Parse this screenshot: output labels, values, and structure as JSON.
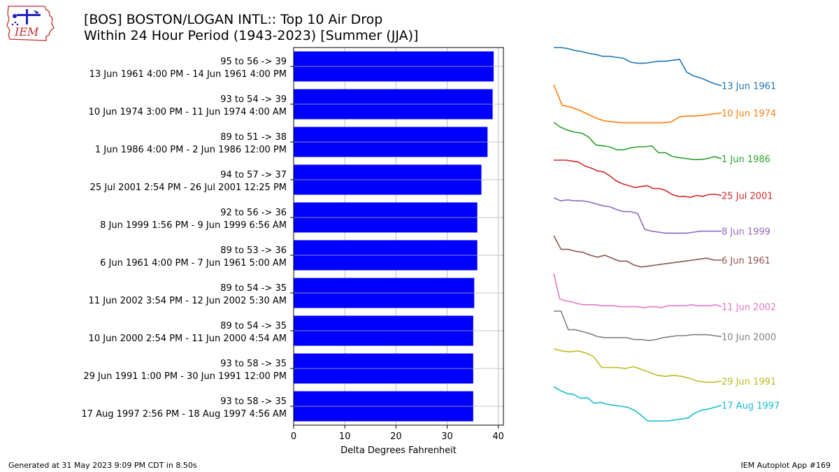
{
  "title_line1": "[BOS] BOSTON/LOGAN INTL:: Top 10 Air Drop",
  "title_line2": "Within 24 Hour Period (1943-2023) [Summer (JJA)]",
  "logo_text": "IEM",
  "footer_left": "Generated at 31 May 2023 9:09 PM CDT in 8.50s",
  "footer_right": "IEM Autoplot App #169",
  "colors": {
    "bar": "#0000ff"
  },
  "chart_data": {
    "type": "bar",
    "orientation": "horizontal",
    "xlabel": "Delta Degrees Fahrenheit",
    "xlim": [
      0,
      41
    ],
    "xticks": [
      0,
      10,
      20,
      30,
      40
    ],
    "grid": true,
    "categories": [
      {
        "line1": "95 to 56 -> 39",
        "line2": "13 Jun 1961 4:00 PM - 14 Jun 1961 4:00 PM"
      },
      {
        "line1": "93 to 54 -> 39",
        "line2": "10 Jun 1974 3:00 PM - 11 Jun 1974 4:00 AM"
      },
      {
        "line1": "89 to 51 -> 38",
        "line2": "1 Jun 1986 4:00 PM - 2 Jun 1986 12:00 PM"
      },
      {
        "line1": "94 to 57 -> 37",
        "line2": "25 Jul 2001 2:54 PM - 26 Jul 2001 12:25 PM"
      },
      {
        "line1": "92 to 56 -> 36",
        "line2": "8 Jun 1999 1:56 PM - 9 Jun 1999 6:56 AM"
      },
      {
        "line1": "89 to 53 -> 36",
        "line2": "6 Jun 1961 4:00 PM - 7 Jun 1961 5:00 AM"
      },
      {
        "line1": "89 to 54 -> 35",
        "line2": "11 Jun 2002 3:54 PM - 12 Jun 2002 5:30 AM"
      },
      {
        "line1": "89 to 54 -> 35",
        "line2": "10 Jun 2000 2:54 PM - 11 Jun 2000 4:54 AM"
      },
      {
        "line1": "93 to 58 -> 35",
        "line2": "29 Jun 1991 1:00 PM - 30 Jun 1991 12:00 PM"
      },
      {
        "line1": "93 to 58 -> 35",
        "line2": "17 Aug 1997 2:56 PM - 18 Aug 1997 4:56 AM"
      }
    ],
    "values": [
      39.1,
      38.9,
      37.9,
      36.7,
      35.9,
      35.9,
      35.3,
      35.1,
      35.1,
      35.1
    ],
    "sparklines": [
      {
        "name": "13 Jun 1961",
        "color": "#1f77b4",
        "values": [
          95,
          95,
          94,
          92,
          91,
          89,
          88,
          86,
          86,
          85,
          84,
          80,
          79,
          79,
          80,
          81,
          81,
          82,
          83,
          70,
          66,
          64,
          61,
          58,
          56
        ]
      },
      {
        "name": "10 Jun 1974",
        "color": "#ff7f0e",
        "values": [
          93,
          72,
          70,
          67,
          63,
          59,
          56,
          55,
          54,
          54,
          54,
          54,
          54,
          54,
          55,
          60,
          61,
          61,
          62,
          63,
          64
        ]
      },
      {
        "name": "1 Jun 1986",
        "color": "#2ca02c",
        "values": [
          89,
          84,
          81,
          79,
          78,
          74,
          66,
          65,
          64,
          61,
          61,
          63,
          64,
          64,
          65,
          58,
          58,
          54,
          53,
          52,
          51,
          51,
          52,
          54,
          52
        ]
      },
      {
        "name": "25 Jul 2001",
        "color": "#d62728",
        "values": [
          94,
          94,
          94,
          93,
          92,
          88,
          86,
          83,
          82,
          78,
          73,
          70,
          68,
          66,
          67,
          68,
          65,
          65,
          63,
          59,
          57,
          57,
          56,
          58,
          57,
          59,
          59,
          58
        ]
      },
      {
        "name": "8 Jun 1999",
        "color": "#9467bd",
        "values": [
          92,
          89,
          90,
          89,
          89,
          88,
          86,
          84,
          83,
          80,
          78,
          78,
          76,
          60,
          58,
          57,
          56,
          56,
          56,
          56,
          57,
          58,
          58,
          58,
          58
        ]
      },
      {
        "name": "6 Jun 1961",
        "color": "#8c564b",
        "values": [
          89,
          75,
          75,
          73,
          72,
          69,
          67,
          69,
          66,
          63,
          63,
          59,
          57,
          58,
          59,
          60,
          61,
          62,
          63,
          64,
          65,
          66,
          64,
          64
        ]
      },
      {
        "name": "11 Jun 2002",
        "color": "#e377c2",
        "values": [
          89,
          63,
          61,
          60,
          58,
          57,
          57,
          57,
          56,
          56,
          56,
          55,
          55,
          55,
          55,
          54,
          55,
          55,
          54,
          56,
          56,
          56,
          56,
          57,
          56,
          56,
          56,
          57,
          55
        ]
      },
      {
        "name": "10 Jun 2000",
        "color": "#7f7f7f",
        "values": [
          89,
          89,
          70,
          70,
          68,
          66,
          63,
          62,
          62,
          62,
          62,
          60,
          60,
          59,
          60,
          62,
          63,
          64,
          64,
          65,
          65,
          65,
          64,
          63
        ]
      },
      {
        "name": "29 Jun 1991",
        "color": "#bcbd22",
        "values": [
          93,
          91,
          90,
          91,
          89,
          85,
          74,
          74,
          74,
          73,
          75,
          72,
          69,
          66,
          65,
          66,
          65,
          63,
          60,
          59,
          59,
          60
        ]
      },
      {
        "name": "17 Aug 1997",
        "color": "#17becf",
        "values": [
          93,
          89,
          86,
          85,
          81,
          82,
          76,
          77,
          75,
          74,
          73,
          72,
          69,
          64,
          58,
          58,
          58,
          58,
          59,
          60,
          61,
          66,
          69,
          70,
          72,
          74
        ]
      }
    ]
  }
}
